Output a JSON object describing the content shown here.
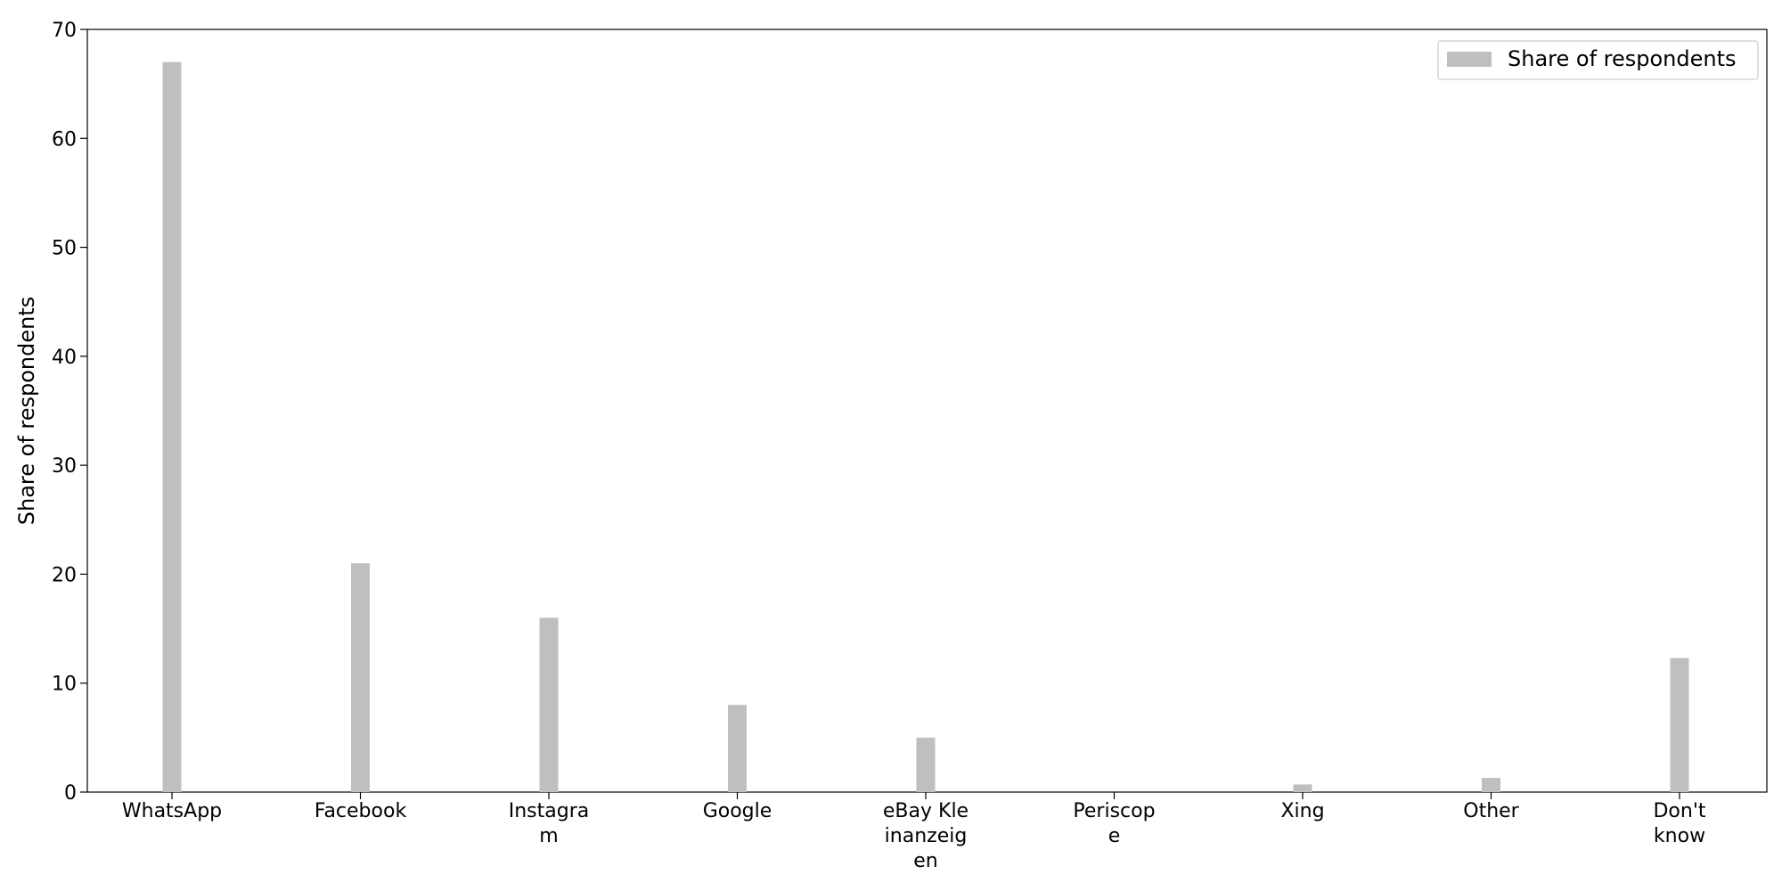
{
  "chart_data": {
    "type": "bar",
    "categories": [
      [
        "WhatsApp"
      ],
      [
        "Facebook"
      ],
      [
        "Instagra",
        "m"
      ],
      [
        "Google"
      ],
      [
        "eBay Kle",
        "inanzeig",
        "en"
      ],
      [
        "Periscop",
        "e"
      ],
      [
        "Xing"
      ],
      [
        "Other"
      ],
      [
        "Don't",
        "know"
      ]
    ],
    "series": [
      {
        "name": "Share of respondents",
        "values": [
          67,
          21,
          16,
          8,
          5,
          0,
          0.7,
          1.3,
          12.3
        ],
        "color": "#bfbfbf"
      }
    ],
    "xlabel": "",
    "ylabel": "Share of respondents",
    "ylim": [
      0,
      70
    ],
    "yticks": [
      0,
      10,
      20,
      30,
      40,
      50,
      60,
      70
    ],
    "legend_position": "top-right",
    "grid": false
  }
}
